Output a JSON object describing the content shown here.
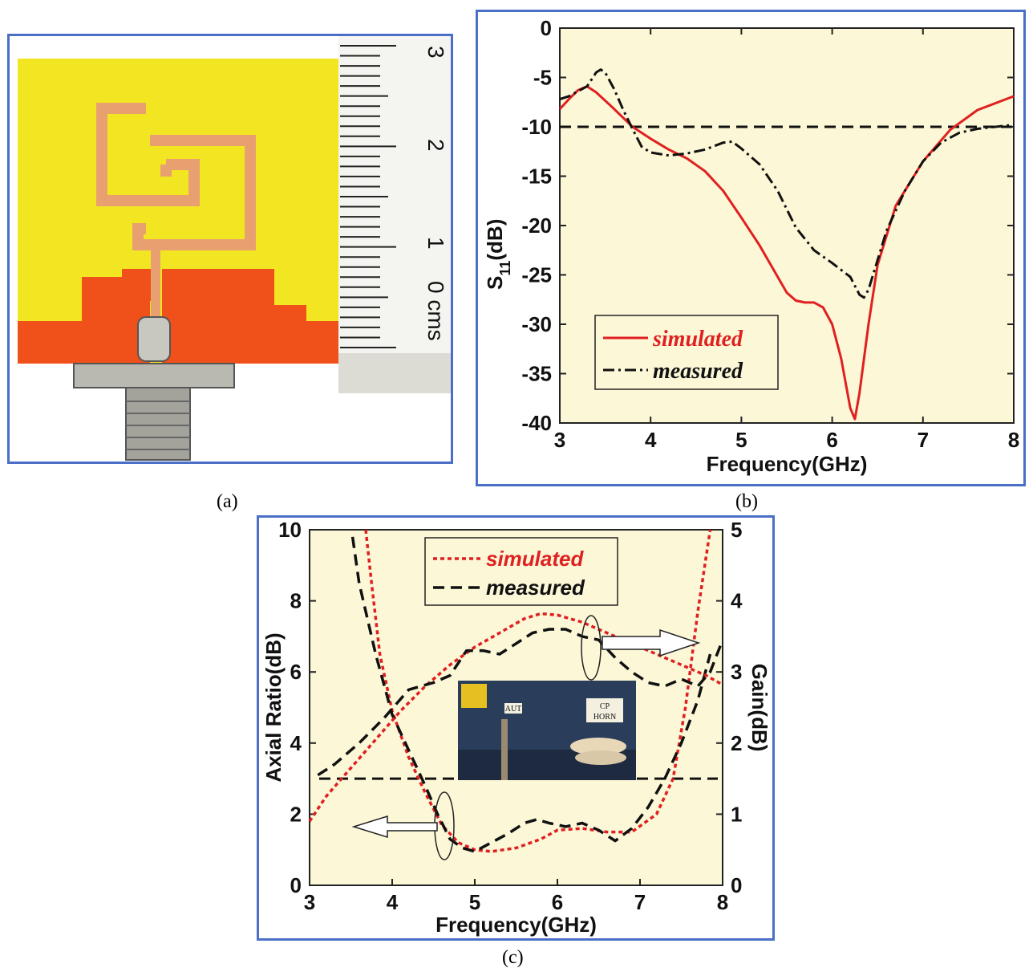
{
  "captions": {
    "a": "(a)",
    "b": "(b)",
    "c": "(c)"
  },
  "colors": {
    "border": "#4a6fc7",
    "plot_bg": "#fbf7d7",
    "simulated": "#e02020",
    "measured": "#111111",
    "substrate": "#f2e622",
    "ground": "#f0501a",
    "copper": "#e8a070"
  },
  "photo_a": {
    "ruler_labels": [
      "3",
      "2",
      "1",
      "0 cms"
    ]
  },
  "photo_c_inset": {
    "labels": [
      "AUT",
      "CP",
      "HORN"
    ]
  },
  "chart_data": [
    {
      "type": "line",
      "xlabel": "Frequency(GHz)",
      "ylabel_main": "S",
      "ylabel_sub": "11",
      "ylabel_tail": "(dB)",
      "xlim": [
        3,
        8
      ],
      "ylim": [
        -40,
        0
      ],
      "xticks": [
        "3",
        "4",
        "5",
        "6",
        "7",
        "8"
      ],
      "yticks": [
        "0",
        "-5",
        "-10",
        "-15",
        "-20",
        "-25",
        "-30",
        "-35",
        "-40"
      ],
      "reference_line": -10,
      "legend_position": "bottom-left",
      "series": [
        {
          "name": "simulated",
          "color": "#e02020",
          "style": "solid",
          "x": [
            3.0,
            3.1,
            3.2,
            3.3,
            3.4,
            3.6,
            3.8,
            4.0,
            4.2,
            4.4,
            4.6,
            4.8,
            5.0,
            5.2,
            5.4,
            5.5,
            5.6,
            5.7,
            5.8,
            5.9,
            6.0,
            6.1,
            6.2,
            6.25,
            6.3,
            6.4,
            6.5,
            6.7,
            7.0,
            7.3,
            7.6,
            8.0
          ],
          "y": [
            -8.2,
            -7.2,
            -6.3,
            -5.9,
            -6.5,
            -8.2,
            -10.0,
            -11.2,
            -12.3,
            -13.2,
            -14.5,
            -16.5,
            -19.2,
            -22.0,
            -25.2,
            -26.8,
            -27.6,
            -27.8,
            -27.8,
            -28.3,
            -30.0,
            -33.5,
            -38.5,
            -39.6,
            -37.0,
            -30.0,
            -24.0,
            -18.0,
            -13.5,
            -10.3,
            -8.3,
            -6.9
          ]
        },
        {
          "name": "measured",
          "color": "#111111",
          "style": "dashdot",
          "x": [
            3.0,
            3.1,
            3.2,
            3.3,
            3.4,
            3.45,
            3.5,
            3.6,
            3.7,
            3.8,
            3.9,
            4.0,
            4.2,
            4.4,
            4.6,
            4.8,
            4.9,
            5.0,
            5.2,
            5.4,
            5.6,
            5.8,
            6.0,
            6.2,
            6.3,
            6.35,
            6.4,
            6.5,
            6.6,
            6.8,
            7.0,
            7.2,
            7.4,
            7.6,
            8.0
          ],
          "y": [
            -7.2,
            -6.9,
            -6.4,
            -5.9,
            -4.5,
            -4.2,
            -4.5,
            -6.2,
            -8.3,
            -10.2,
            -12.0,
            -12.6,
            -12.9,
            -12.7,
            -12.3,
            -11.6,
            -11.5,
            -12.2,
            -13.8,
            -16.5,
            -20.2,
            -22.5,
            -23.8,
            -25.2,
            -27.0,
            -27.3,
            -26.5,
            -23.5,
            -20.5,
            -16.5,
            -13.5,
            -11.6,
            -10.6,
            -10.2,
            -9.8
          ]
        }
      ]
    },
    {
      "type": "line",
      "xlabel": "Frequency(GHz)",
      "ylabel_left": "Axial Ratio(dB)",
      "ylabel_right": "Gain(dB)",
      "xlim": [
        3,
        8
      ],
      "ylim_left": [
        0,
        10
      ],
      "ylim_right": [
        0,
        5
      ],
      "xticks": [
        "3",
        "4",
        "5",
        "6",
        "7",
        "8"
      ],
      "yticks_left": [
        "0",
        "2",
        "4",
        "6",
        "8",
        "10"
      ],
      "yticks_right": [
        "0",
        "1",
        "2",
        "3",
        "4",
        "5"
      ],
      "reference_line_left": 3,
      "legend_position": "top-center",
      "series": [
        {
          "name": "simulated",
          "axis": "left",
          "color": "#e02020",
          "style": "dotted",
          "x": [
            3.68,
            3.75,
            3.85,
            4.0,
            4.2,
            4.4,
            4.6,
            4.8,
            5.0,
            5.2,
            5.5,
            5.8,
            6.0,
            6.3,
            6.6,
            6.9,
            7.2,
            7.4,
            7.55,
            7.7,
            7.85
          ],
          "y": [
            10,
            8.5,
            6.5,
            4.9,
            3.6,
            2.6,
            1.7,
            1.2,
            1.0,
            0.95,
            1.05,
            1.3,
            1.55,
            1.6,
            1.5,
            1.5,
            2.0,
            3.0,
            5.0,
            7.7,
            10.0
          ]
        },
        {
          "name": "measured",
          "axis": "left",
          "color": "#111111",
          "style": "dashed",
          "x": [
            3.52,
            3.6,
            3.8,
            4.0,
            4.2,
            4.4,
            4.55,
            4.7,
            4.85,
            5.0,
            5.2,
            5.4,
            5.6,
            5.75,
            5.9,
            6.1,
            6.3,
            6.5,
            6.7,
            6.9,
            7.1,
            7.3,
            7.5,
            7.7,
            7.85
          ],
          "y": [
            9.8,
            8.5,
            6.5,
            4.8,
            3.8,
            2.8,
            2.0,
            1.3,
            1.05,
            0.95,
            1.2,
            1.45,
            1.75,
            1.85,
            1.75,
            1.65,
            1.75,
            1.55,
            1.25,
            1.6,
            2.2,
            3.0,
            4.0,
            5.2,
            6.5
          ]
        },
        {
          "name": "simulated",
          "axis": "right",
          "color": "#e02020",
          "style": "dotted",
          "x": [
            3.0,
            3.2,
            3.5,
            3.8,
            4.1,
            4.4,
            4.7,
            5.0,
            5.3,
            5.6,
            5.8,
            6.0,
            6.3,
            6.6,
            6.9,
            7.2,
            7.5,
            7.8,
            8.0
          ],
          "y": [
            0.9,
            1.25,
            1.65,
            2.05,
            2.45,
            2.8,
            3.1,
            3.35,
            3.55,
            3.75,
            3.82,
            3.8,
            3.7,
            3.55,
            3.4,
            3.25,
            3.1,
            2.95,
            2.82
          ]
        },
        {
          "name": "measured",
          "axis": "right",
          "color": "#111111",
          "style": "dashed",
          "x": [
            3.1,
            3.3,
            3.6,
            3.9,
            4.2,
            4.5,
            4.7,
            4.9,
            5.1,
            5.3,
            5.5,
            5.7,
            5.9,
            6.1,
            6.3,
            6.5,
            6.7,
            6.9,
            7.1,
            7.3,
            7.5,
            7.7,
            7.85,
            8.0
          ],
          "y": [
            1.55,
            1.7,
            2.0,
            2.35,
            2.75,
            2.85,
            2.95,
            3.3,
            3.3,
            3.25,
            3.4,
            3.55,
            3.6,
            3.6,
            3.5,
            3.45,
            3.2,
            3.0,
            2.85,
            2.8,
            2.9,
            2.8,
            3.0,
            3.45
          ]
        }
      ]
    }
  ]
}
